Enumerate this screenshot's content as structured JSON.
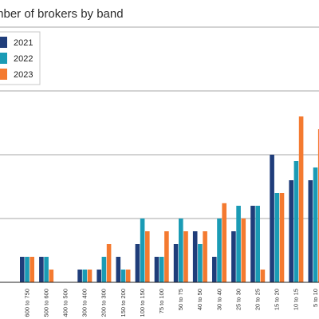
{
  "chart_data": {
    "type": "bar",
    "title": "mber of brokers by band",
    "categories": [
      "600 to 750",
      "500 to 600",
      "400 to 500",
      "300 to 400",
      "200 to 300",
      "150 to 200",
      "100 to 150",
      "75 to 100",
      "50 to 75",
      "40 to 50",
      "30 to 40",
      "25 to 30",
      "20 to 25",
      "15 to 20",
      "10 to 15",
      "5 to 10"
    ],
    "series": [
      {
        "name": "2021",
        "color": "#1f3d7a",
        "values": [
          2,
          2,
          0,
          1,
          1,
          2,
          3,
          2,
          3,
          4,
          2,
          4,
          6,
          10,
          8,
          8
        ]
      },
      {
        "name": "2022",
        "color": "#1a9bb5",
        "values": [
          2,
          2,
          0,
          1,
          2,
          1,
          5,
          2,
          5,
          3,
          5,
          6,
          6,
          7,
          9.5,
          9
        ]
      },
      {
        "name": "2023",
        "color": "#f47a30",
        "values": [
          2,
          1,
          0,
          1,
          3,
          1,
          4,
          4,
          4,
          4,
          6.2,
          5,
          1,
          7,
          13,
          12
        ]
      }
    ],
    "ylim": [
      0,
      20
    ],
    "grid": true,
    "legend": "top-left"
  }
}
